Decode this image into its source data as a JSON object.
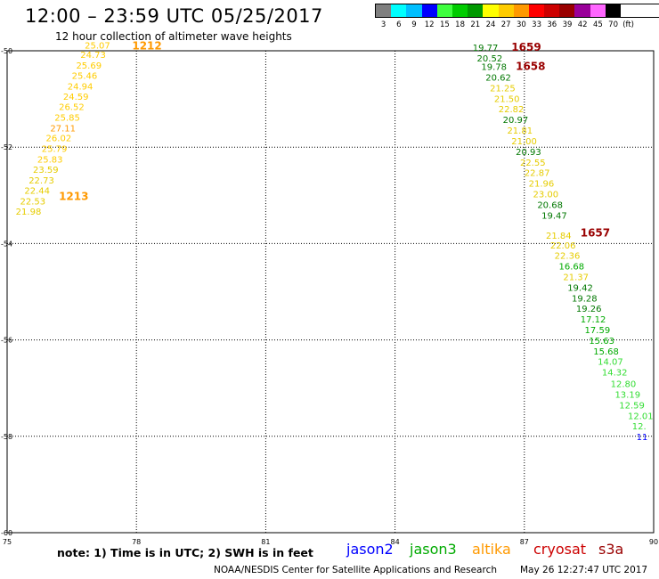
{
  "header": {
    "title": "12:00 – 23:59 UTC 05/25/2017",
    "subtitle": "12 hour collection of altimeter wave heights"
  },
  "legend": {
    "colors": [
      "#7f7f7f",
      "#00ffff",
      "#00bfff",
      "#0000ff",
      "#3fff3f",
      "#00cc00",
      "#009900",
      "#ffff00",
      "#ffcc00",
      "#ff9900",
      "#ff0000",
      "#cc0000",
      "#990000",
      "#990099",
      "#ff66ff",
      "#000000"
    ],
    "labels": [
      "3",
      "6",
      "9",
      "12",
      "15",
      "18",
      "21",
      "24",
      "27",
      "30",
      "33",
      "36",
      "39",
      "42",
      "45",
      "70"
    ],
    "unit": "(ft)"
  },
  "chart_data": {
    "type": "map",
    "x_ticks": [
      "75",
      "78",
      "81",
      "84",
      "87",
      "90"
    ],
    "y_ticks": [
      "-50",
      "-52",
      "-54",
      "-56",
      "-58",
      "-60"
    ],
    "xlim": [
      75,
      90
    ],
    "ylim": [
      -60,
      -50
    ],
    "tracks": [
      {
        "time_labels": [
          {
            "text": "1212",
            "lon": 77.9,
            "lat": -49.97,
            "color": "#ff9900"
          },
          {
            "text": "1213",
            "lon": 76.2,
            "lat": -53.1,
            "color": "#ff9900"
          }
        ],
        "points": [
          {
            "lon": 76.8,
            "lat": -49.95,
            "value": "25.07"
          },
          {
            "lon": 76.7,
            "lat": -50.15,
            "value": "24.73"
          },
          {
            "lon": 76.6,
            "lat": -50.37,
            "value": "25.69"
          },
          {
            "lon": 76.5,
            "lat": -50.58,
            "value": "25.46"
          },
          {
            "lon": 76.4,
            "lat": -50.8,
            "value": "24.94"
          },
          {
            "lon": 76.3,
            "lat": -51.02,
            "value": "24.59"
          },
          {
            "lon": 76.2,
            "lat": -51.23,
            "value": "26.52"
          },
          {
            "lon": 76.1,
            "lat": -51.45,
            "value": "25.85"
          },
          {
            "lon": 76.0,
            "lat": -51.67,
            "value": "27.11"
          },
          {
            "lon": 75.9,
            "lat": -51.88,
            "value": "26.02"
          },
          {
            "lon": 75.8,
            "lat": -52.1,
            "value": "25.79"
          },
          {
            "lon": 75.7,
            "lat": -52.32,
            "value": "25.83"
          },
          {
            "lon": 75.6,
            "lat": -52.53,
            "value": "23.59"
          },
          {
            "lon": 75.5,
            "lat": -52.75,
            "value": "22.73"
          },
          {
            "lon": 75.4,
            "lat": -52.97,
            "value": "22.44"
          },
          {
            "lon": 75.3,
            "lat": -53.19,
            "value": "22.53"
          },
          {
            "lon": 75.2,
            "lat": -53.4,
            "value": "21.98"
          }
        ]
      },
      {
        "time_labels": [
          {
            "text": "1659",
            "lon": 86.7,
            "lat": -50.0,
            "color": "#990000"
          },
          {
            "text": "1658",
            "lon": 86.8,
            "lat": -50.4,
            "color": "#990000"
          },
          {
            "text": "1657",
            "lon": 88.3,
            "lat": -53.85,
            "color": "#990000"
          }
        ],
        "points": [
          {
            "lon": 85.8,
            "lat": -50.0,
            "value": "19.77"
          },
          {
            "lon": 85.9,
            "lat": -50.22,
            "value": "20.52"
          },
          {
            "lon": 86.0,
            "lat": -50.4,
            "value": "19.78"
          },
          {
            "lon": 86.1,
            "lat": -50.62,
            "value": "20.62"
          },
          {
            "lon": 86.2,
            "lat": -50.84,
            "value": "21.25"
          },
          {
            "lon": 86.3,
            "lat": -51.06,
            "value": "21.50"
          },
          {
            "lon": 86.4,
            "lat": -51.28,
            "value": "22.82"
          },
          {
            "lon": 86.5,
            "lat": -51.5,
            "value": "20.97"
          },
          {
            "lon": 86.6,
            "lat": -51.72,
            "value": "21.81"
          },
          {
            "lon": 86.7,
            "lat": -51.94,
            "value": "21.00"
          },
          {
            "lon": 86.8,
            "lat": -52.16,
            "value": "20.93"
          },
          {
            "lon": 86.9,
            "lat": -52.38,
            "value": "22.55"
          },
          {
            "lon": 87.0,
            "lat": -52.6,
            "value": "22.87"
          },
          {
            "lon": 87.1,
            "lat": -52.82,
            "value": "21.96"
          },
          {
            "lon": 87.2,
            "lat": -53.04,
            "value": "23.00"
          },
          {
            "lon": 87.3,
            "lat": -53.26,
            "value": "20.68"
          },
          {
            "lon": 87.4,
            "lat": -53.48,
            "value": "19.47"
          },
          {
            "lon": 87.5,
            "lat": -53.9,
            "value": "21.84"
          },
          {
            "lon": 87.6,
            "lat": -54.1,
            "value": "22.06"
          },
          {
            "lon": 87.7,
            "lat": -54.32,
            "value": "22.36"
          },
          {
            "lon": 87.8,
            "lat": -54.54,
            "value": "16.68"
          },
          {
            "lon": 87.9,
            "lat": -54.76,
            "value": "21.37"
          },
          {
            "lon": 88.0,
            "lat": -54.98,
            "value": "19.42"
          },
          {
            "lon": 88.1,
            "lat": -55.2,
            "value": "19.28"
          },
          {
            "lon": 88.2,
            "lat": -55.42,
            "value": "19.26"
          },
          {
            "lon": 88.3,
            "lat": -55.64,
            "value": "17.12"
          },
          {
            "lon": 88.4,
            "lat": -55.86,
            "value": "17.59"
          },
          {
            "lon": 88.5,
            "lat": -56.08,
            "value": "15.63"
          },
          {
            "lon": 88.6,
            "lat": -56.3,
            "value": "15.68"
          },
          {
            "lon": 88.7,
            "lat": -56.52,
            "value": "14.07"
          },
          {
            "lon": 88.8,
            "lat": -56.74,
            "value": "14.32"
          },
          {
            "lon": 89.0,
            "lat": -56.98,
            "value": "12.80"
          },
          {
            "lon": 89.1,
            "lat": -57.2,
            "value": "13.19"
          },
          {
            "lon": 89.2,
            "lat": -57.42,
            "value": "12.59"
          },
          {
            "lon": 89.4,
            "lat": -57.64,
            "value": "12.01"
          },
          {
            "lon": 89.5,
            "lat": -57.86,
            "value": "12."
          },
          {
            "lon": 89.6,
            "lat": -58.08,
            "value": "11"
          }
        ]
      }
    ]
  },
  "footer": {
    "note": "note: 1) Time is in UTC; 2) SWH is in feet",
    "satellites": [
      {
        "name": "jason2",
        "color": "#0000ff"
      },
      {
        "name": "jason3",
        "color": "#00aa00"
      },
      {
        "name": "altika",
        "color": "#ff9900"
      },
      {
        "name": "cryosat",
        "color": "#cc0000"
      },
      {
        "name": "s3a",
        "color": "#990000"
      }
    ],
    "credit": "NOAA/NESDIS Center for Satellite Applications and Research",
    "timestamp": "May 26 12:27:47 UTC 2017"
  }
}
